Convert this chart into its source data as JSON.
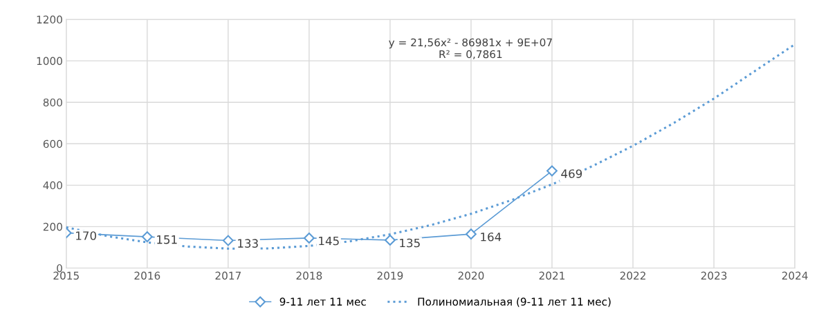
{
  "chart_data": {
    "type": "line",
    "x": [
      2015,
      2016,
      2017,
      2018,
      2019,
      2020,
      2021
    ],
    "xlim": [
      2015,
      2024
    ],
    "xticks": [
      2015,
      2016,
      2017,
      2018,
      2019,
      2020,
      2021,
      2022,
      2023,
      2024
    ],
    "ylim": [
      0,
      1200
    ],
    "yticks": [
      0,
      200,
      400,
      600,
      800,
      1000,
      1200
    ],
    "grid": true,
    "legend": "bottom",
    "annotations": [
      "y = 21,56x² - 86981x + 9E+07\nR² = 0,7861"
    ],
    "series": [
      {
        "name": "9-11 лет 11 мес",
        "color": "#5b9bd5",
        "marker": "diamond",
        "line_style": "solid",
        "data_labels": true,
        "values": [
          170,
          151,
          133,
          145,
          135,
          164,
          469
        ]
      },
      {
        "name": "Полиномиальная (9-11 лет 11 мес)",
        "color": "#5b9bd5",
        "marker": "none",
        "line_style": "dotted",
        "x": [
          2015,
          2015.5,
          2016,
          2016.5,
          2017,
          2017.5,
          2018,
          2018.5,
          2019,
          2019.5,
          2020,
          2020.5,
          2021,
          2021.5,
          2022,
          2022.5,
          2023,
          2023.5,
          2024
        ],
        "values": [
          197,
          155,
          124,
          104,
          94,
          95,
          107,
          129,
          163,
          207,
          262,
          328,
          404,
          492,
          590,
          699,
          818,
          949,
          1080
        ]
      }
    ]
  }
}
